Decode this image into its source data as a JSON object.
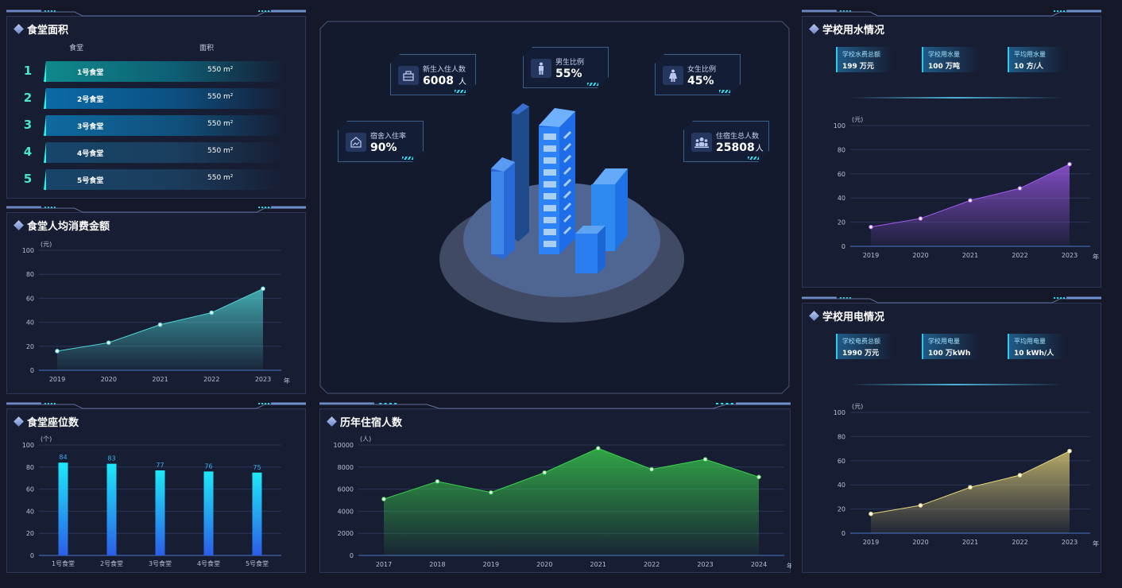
{
  "canteen_area": {
    "title": "食堂面积",
    "col_name": "食堂",
    "col_area": "面积",
    "rows": [
      {
        "rank": "1",
        "name": "1号食堂",
        "area": "550 m²"
      },
      {
        "rank": "2",
        "name": "2号食堂",
        "area": "550 m²"
      },
      {
        "rank": "3",
        "name": "3号食堂",
        "area": "550 m²"
      },
      {
        "rank": "4",
        "name": "4号食堂",
        "area": "550 m²"
      },
      {
        "rank": "5",
        "name": "5号食堂",
        "area": "550 m²"
      }
    ]
  },
  "center_stats": {
    "new_residents": {
      "label": "新生入住人数",
      "value": "6008",
      "unit": "人",
      "icon": "bag-icon"
    },
    "male_ratio": {
      "label": "男生比例",
      "value": "55%",
      "icon": "male-icon"
    },
    "female_ratio": {
      "label": "女生比例",
      "value": "45%",
      "icon": "female-icon"
    },
    "occupancy": {
      "label": "宿舍入住率",
      "value": "90%",
      "icon": "chart-house-icon"
    },
    "total_residents": {
      "label": "住宿生总人数",
      "value": "25808",
      "unit": "人",
      "icon": "group-icon"
    }
  },
  "water": {
    "title": "学校用水情况",
    "stats": [
      {
        "label": "学校水费总额",
        "value": "199 万元"
      },
      {
        "label": "学校用水量",
        "value": "100 万吨"
      },
      {
        "label": "平均用水量",
        "value": "10 方/人"
      }
    ]
  },
  "electric": {
    "title": "学校用电情况",
    "stats": [
      {
        "label": "学校电费总额",
        "value": "1990 万元"
      },
      {
        "label": "学校用电量",
        "value": "100 万kWh"
      },
      {
        "label": "平均用电量",
        "value": "10 kWh/人"
      }
    ]
  },
  "consume": {
    "title": "食堂人均消费金额"
  },
  "seats": {
    "title": "食堂座位数"
  },
  "history": {
    "title": "历年住宿人数"
  },
  "colors": {
    "accent": "#2de1f0",
    "teal": "#4fd6d6",
    "purple": "#a35cf0",
    "green": "#3ad24c",
    "yellow": "#e8d77a",
    "bar": "#1ee3f7"
  },
  "chart_data": [
    {
      "id": "consume",
      "type": "area",
      "title": "食堂人均消费金额",
      "unit": "(元)",
      "xunit": "年",
      "categories": [
        "2019",
        "2020",
        "2021",
        "2022",
        "2023"
      ],
      "values": [
        16,
        23,
        38,
        48,
        68
      ],
      "ylim": [
        0,
        100
      ],
      "yticks": [
        0,
        20,
        40,
        60,
        80,
        100
      ],
      "grid": true
    },
    {
      "id": "seats",
      "type": "bar",
      "title": "食堂座位数",
      "unit": "(个)",
      "categories": [
        "1号食堂",
        "2号食堂",
        "3号食堂",
        "4号食堂",
        "5号食堂"
      ],
      "values": [
        84,
        83,
        77,
        76,
        75
      ],
      "ylim": [
        0,
        100
      ],
      "yticks": [
        0,
        20,
        40,
        60,
        80,
        100
      ],
      "grid": true
    },
    {
      "id": "history",
      "type": "area",
      "title": "历年住宿人数",
      "unit": "(人)",
      "xunit": "年",
      "categories": [
        "2017",
        "2018",
        "2019",
        "2020",
        "2021",
        "2022",
        "2023",
        "2024"
      ],
      "values": [
        5100,
        6700,
        5700,
        7500,
        9700,
        7800,
        8700,
        7100
      ],
      "ylim": [
        0,
        10000
      ],
      "yticks": [
        0,
        2000,
        4000,
        6000,
        8000,
        10000
      ],
      "grid": true
    },
    {
      "id": "water",
      "type": "area",
      "title": "学校用水情况",
      "unit": "(元)",
      "xunit": "年",
      "categories": [
        "2019",
        "2020",
        "2021",
        "2022",
        "2023"
      ],
      "values": [
        16,
        23,
        38,
        48,
        68
      ],
      "ylim": [
        0,
        100
      ],
      "yticks": [
        0,
        20,
        40,
        60,
        80,
        100
      ],
      "grid": true
    },
    {
      "id": "electric",
      "type": "area",
      "title": "学校用电情况",
      "unit": "(元)",
      "xunit": "年",
      "categories": [
        "2019",
        "2020",
        "2021",
        "2022",
        "2023"
      ],
      "values": [
        16,
        23,
        38,
        48,
        68
      ],
      "ylim": [
        0,
        100
      ],
      "yticks": [
        0,
        20,
        40,
        60,
        80,
        100
      ],
      "grid": true
    }
  ]
}
